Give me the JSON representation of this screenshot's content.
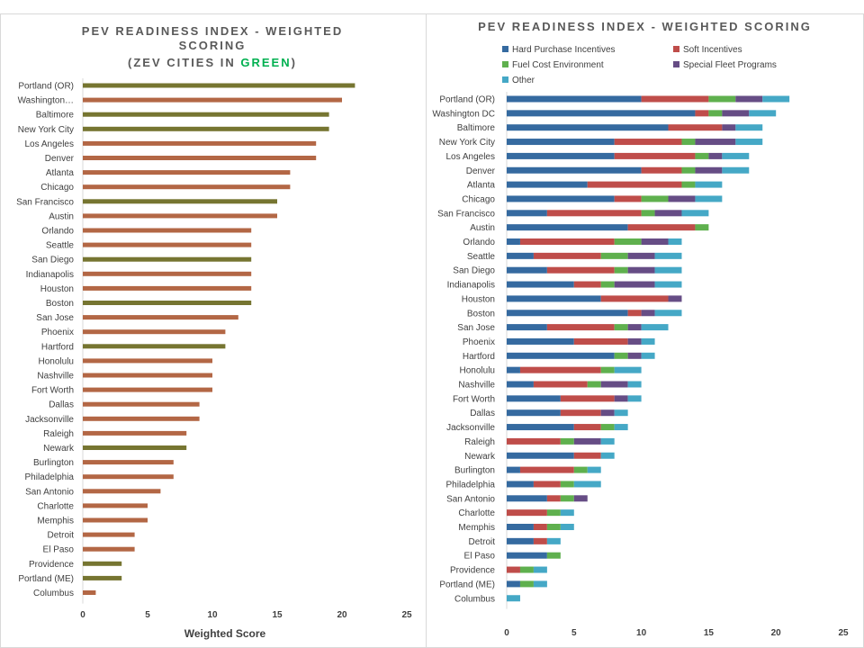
{
  "colors": {
    "zev": "#767531",
    "nonzev": "#b36745",
    "hard": "#356aa0",
    "soft": "#bf4d4a",
    "fuel": "#5fb04e",
    "fleet": "#664d85",
    "other": "#45a8c6",
    "axis": "#d9d9d9",
    "text": "#404040"
  },
  "left": {
    "title": "PEV READINESS INDEX - WEIGHTED SCORING",
    "subtitle_open": "(ZEV CITIES IN ",
    "subtitle_green": "GREEN",
    "subtitle_close": ")"
  },
  "right": {
    "title": "PEV READINESS INDEX - WEIGHTED SCORING"
  },
  "chart_data": [
    {
      "type": "bar",
      "orientation": "horizontal",
      "title": "PEV READINESS INDEX - WEIGHTED SCORING (ZEV CITIES IN GREEN)",
      "xlabel": "Weighted Score",
      "ylabel": "",
      "xlim": [
        0,
        25
      ],
      "xticks": [
        0,
        5,
        10,
        15,
        20,
        25
      ],
      "grid": false,
      "categories": [
        "Portland (OR)",
        "Washington…",
        "Baltimore",
        "New York City",
        "Los Angeles",
        "Denver",
        "Atlanta",
        "Chicago",
        "San Francisco",
        "Austin",
        "Orlando",
        "Seattle",
        "San Diego",
        "Indianapolis",
        "Houston",
        "Boston",
        "San Jose",
        "Phoenix",
        "Hartford",
        "Honolulu",
        "Nashville",
        "Fort Worth",
        "Dallas",
        "Jacksonville",
        "Raleigh",
        "Newark",
        "Burlington",
        "Philadelphia",
        "San Antonio",
        "Charlotte",
        "Memphis",
        "Detroit",
        "El Paso",
        "Providence",
        "Portland (ME)",
        "Columbus"
      ],
      "values": [
        21,
        20,
        19,
        19,
        18,
        18,
        16,
        16,
        15,
        15,
        13,
        13,
        13,
        13,
        13,
        13,
        12,
        11,
        11,
        10,
        10,
        10,
        9,
        9,
        8,
        8,
        7,
        7,
        6,
        5,
        5,
        4,
        4,
        3,
        3,
        1
      ],
      "zev": [
        true,
        false,
        true,
        true,
        false,
        false,
        false,
        false,
        true,
        false,
        false,
        false,
        true,
        false,
        false,
        true,
        false,
        false,
        true,
        false,
        false,
        false,
        false,
        false,
        false,
        true,
        false,
        false,
        false,
        false,
        false,
        false,
        false,
        true,
        true,
        false
      ]
    },
    {
      "type": "bar",
      "orientation": "horizontal",
      "stacked": true,
      "title": "PEV READINESS INDEX - WEIGHTED SCORING",
      "xlabel": "",
      "xlim": [
        0,
        25
      ],
      "xticks": [
        0,
        5,
        10,
        15,
        20,
        25
      ],
      "grid": false,
      "legend_position": "top",
      "categories": [
        "Portland (OR)",
        "Washington DC",
        "Baltimore",
        "New York City",
        "Los Angeles",
        "Denver",
        "Atlanta",
        "Chicago",
        "San Francisco",
        "Austin",
        "Orlando",
        "Seattle",
        "San Diego",
        "Indianapolis",
        "Houston",
        "Boston",
        "San Jose",
        "Phoenix",
        "Hartford",
        "Honolulu",
        "Nashville",
        "Fort Worth",
        "Dallas",
        "Jacksonville",
        "Raleigh",
        "Newark",
        "Burlington",
        "Philadelphia",
        "San Antonio",
        "Charlotte",
        "Memphis",
        "Detroit",
        "El Paso",
        "Providence",
        "Portland (ME)",
        "Columbus"
      ],
      "series": [
        {
          "name": "Hard Purchase Incentives",
          "color": "#356aa0",
          "values": [
            10,
            14,
            12,
            8,
            8,
            10,
            6,
            8,
            3,
            9,
            1,
            2,
            3,
            5,
            7,
            9,
            3,
            5,
            8,
            1,
            2,
            4,
            4,
            5,
            0,
            5,
            1,
            2,
            3,
            0,
            2,
            2,
            3,
            0,
            1,
            0
          ]
        },
        {
          "name": "Soft Incentives",
          "color": "#bf4d4a",
          "values": [
            5,
            1,
            4,
            5,
            6,
            3,
            7,
            2,
            7,
            5,
            7,
            5,
            5,
            2,
            5,
            1,
            5,
            4,
            0,
            6,
            4,
            4,
            3,
            2,
            4,
            2,
            4,
            2,
            1,
            3,
            1,
            1,
            0,
            1,
            0,
            0
          ]
        },
        {
          "name": "Fuel Cost Environment",
          "color": "#5fb04e",
          "values": [
            2,
            1,
            0,
            1,
            1,
            1,
            1,
            2,
            1,
            1,
            2,
            2,
            1,
            1,
            0,
            0,
            1,
            0,
            1,
            1,
            1,
            0,
            0,
            1,
            1,
            0,
            1,
            1,
            1,
            1,
            1,
            0,
            1,
            1,
            1,
            0
          ]
        },
        {
          "name": "Special Fleet Programs",
          "color": "#664d85",
          "values": [
            2,
            2,
            1,
            3,
            1,
            2,
            0,
            2,
            2,
            0,
            2,
            2,
            2,
            3,
            1,
            1,
            1,
            1,
            1,
            0,
            2,
            1,
            1,
            0,
            2,
            0,
            0,
            0,
            1,
            0,
            0,
            0,
            0,
            0,
            0,
            0
          ]
        },
        {
          "name": "Other",
          "color": "#45a8c6",
          "values": [
            2,
            2,
            2,
            2,
            2,
            2,
            2,
            2,
            2,
            0,
            1,
            2,
            2,
            2,
            0,
            2,
            2,
            1,
            1,
            2,
            1,
            1,
            1,
            1,
            1,
            1,
            1,
            2,
            0,
            1,
            1,
            1,
            0,
            1,
            1,
            1
          ]
        }
      ]
    }
  ]
}
